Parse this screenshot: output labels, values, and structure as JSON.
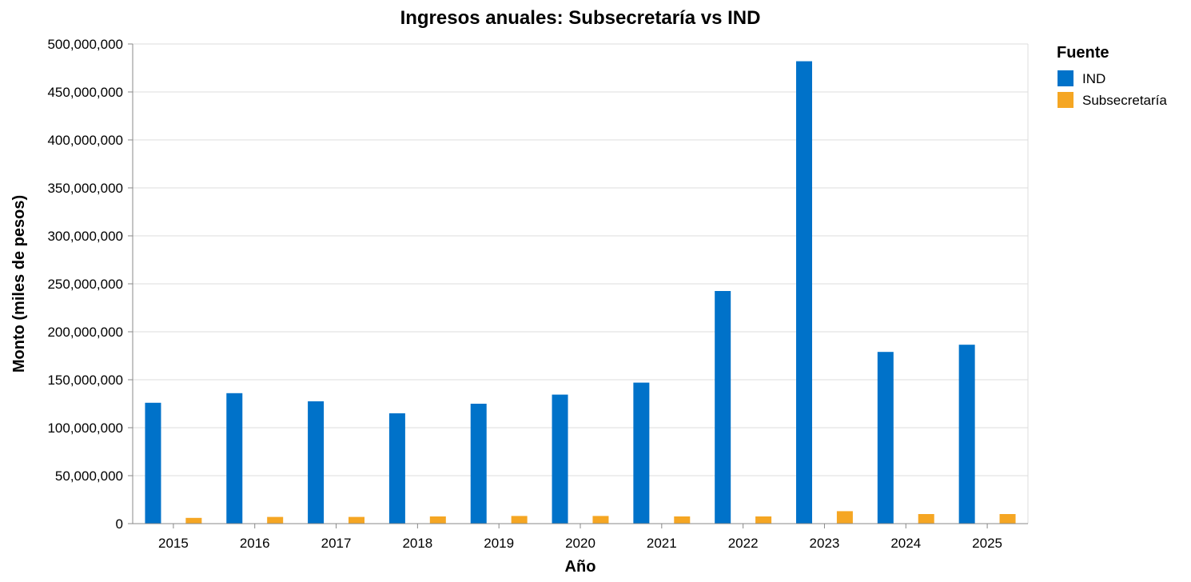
{
  "chart_data": {
    "type": "bar",
    "title": "Ingresos anuales: Subsecretaría vs IND",
    "xlabel": "Año",
    "ylabel": "Monto (miles de pesos)",
    "ylim": [
      0,
      500000000
    ],
    "y_ticks": [
      {
        "value": 0,
        "label": "0"
      },
      {
        "value": 50000000,
        "label": "50,000,000"
      },
      {
        "value": 100000000,
        "label": "100,000,000"
      },
      {
        "value": 150000000,
        "label": "150,000,000"
      },
      {
        "value": 200000000,
        "label": "200,000,000"
      },
      {
        "value": 250000000,
        "label": "250,000,000"
      },
      {
        "value": 300000000,
        "label": "300,000,000"
      },
      {
        "value": 350000000,
        "label": "350,000,000"
      },
      {
        "value": 400000000,
        "label": "400,000,000"
      },
      {
        "value": 450000000,
        "label": "450,000,000"
      },
      {
        "value": 500000000,
        "label": "500,000,000"
      }
    ],
    "categories": [
      "2015",
      "2016",
      "2017",
      "2018",
      "2019",
      "2020",
      "2021",
      "2022",
      "2023",
      "2024",
      "2025"
    ],
    "legend": {
      "title": "Fuente",
      "position": "top-right"
    },
    "grid": true,
    "series": [
      {
        "name": "IND",
        "color": "#0072c9",
        "values": [
          126000000,
          136000000,
          127500000,
          115000000,
          125000000,
          134500000,
          147000000,
          242500000,
          482000000,
          179000000,
          186500000
        ]
      },
      {
        "name": "Subsecretaría",
        "color": "#f5a623",
        "values": [
          6000000,
          7000000,
          7000000,
          7500000,
          8000000,
          8000000,
          7500000,
          7500000,
          13000000,
          10000000,
          10000000
        ]
      }
    ]
  }
}
